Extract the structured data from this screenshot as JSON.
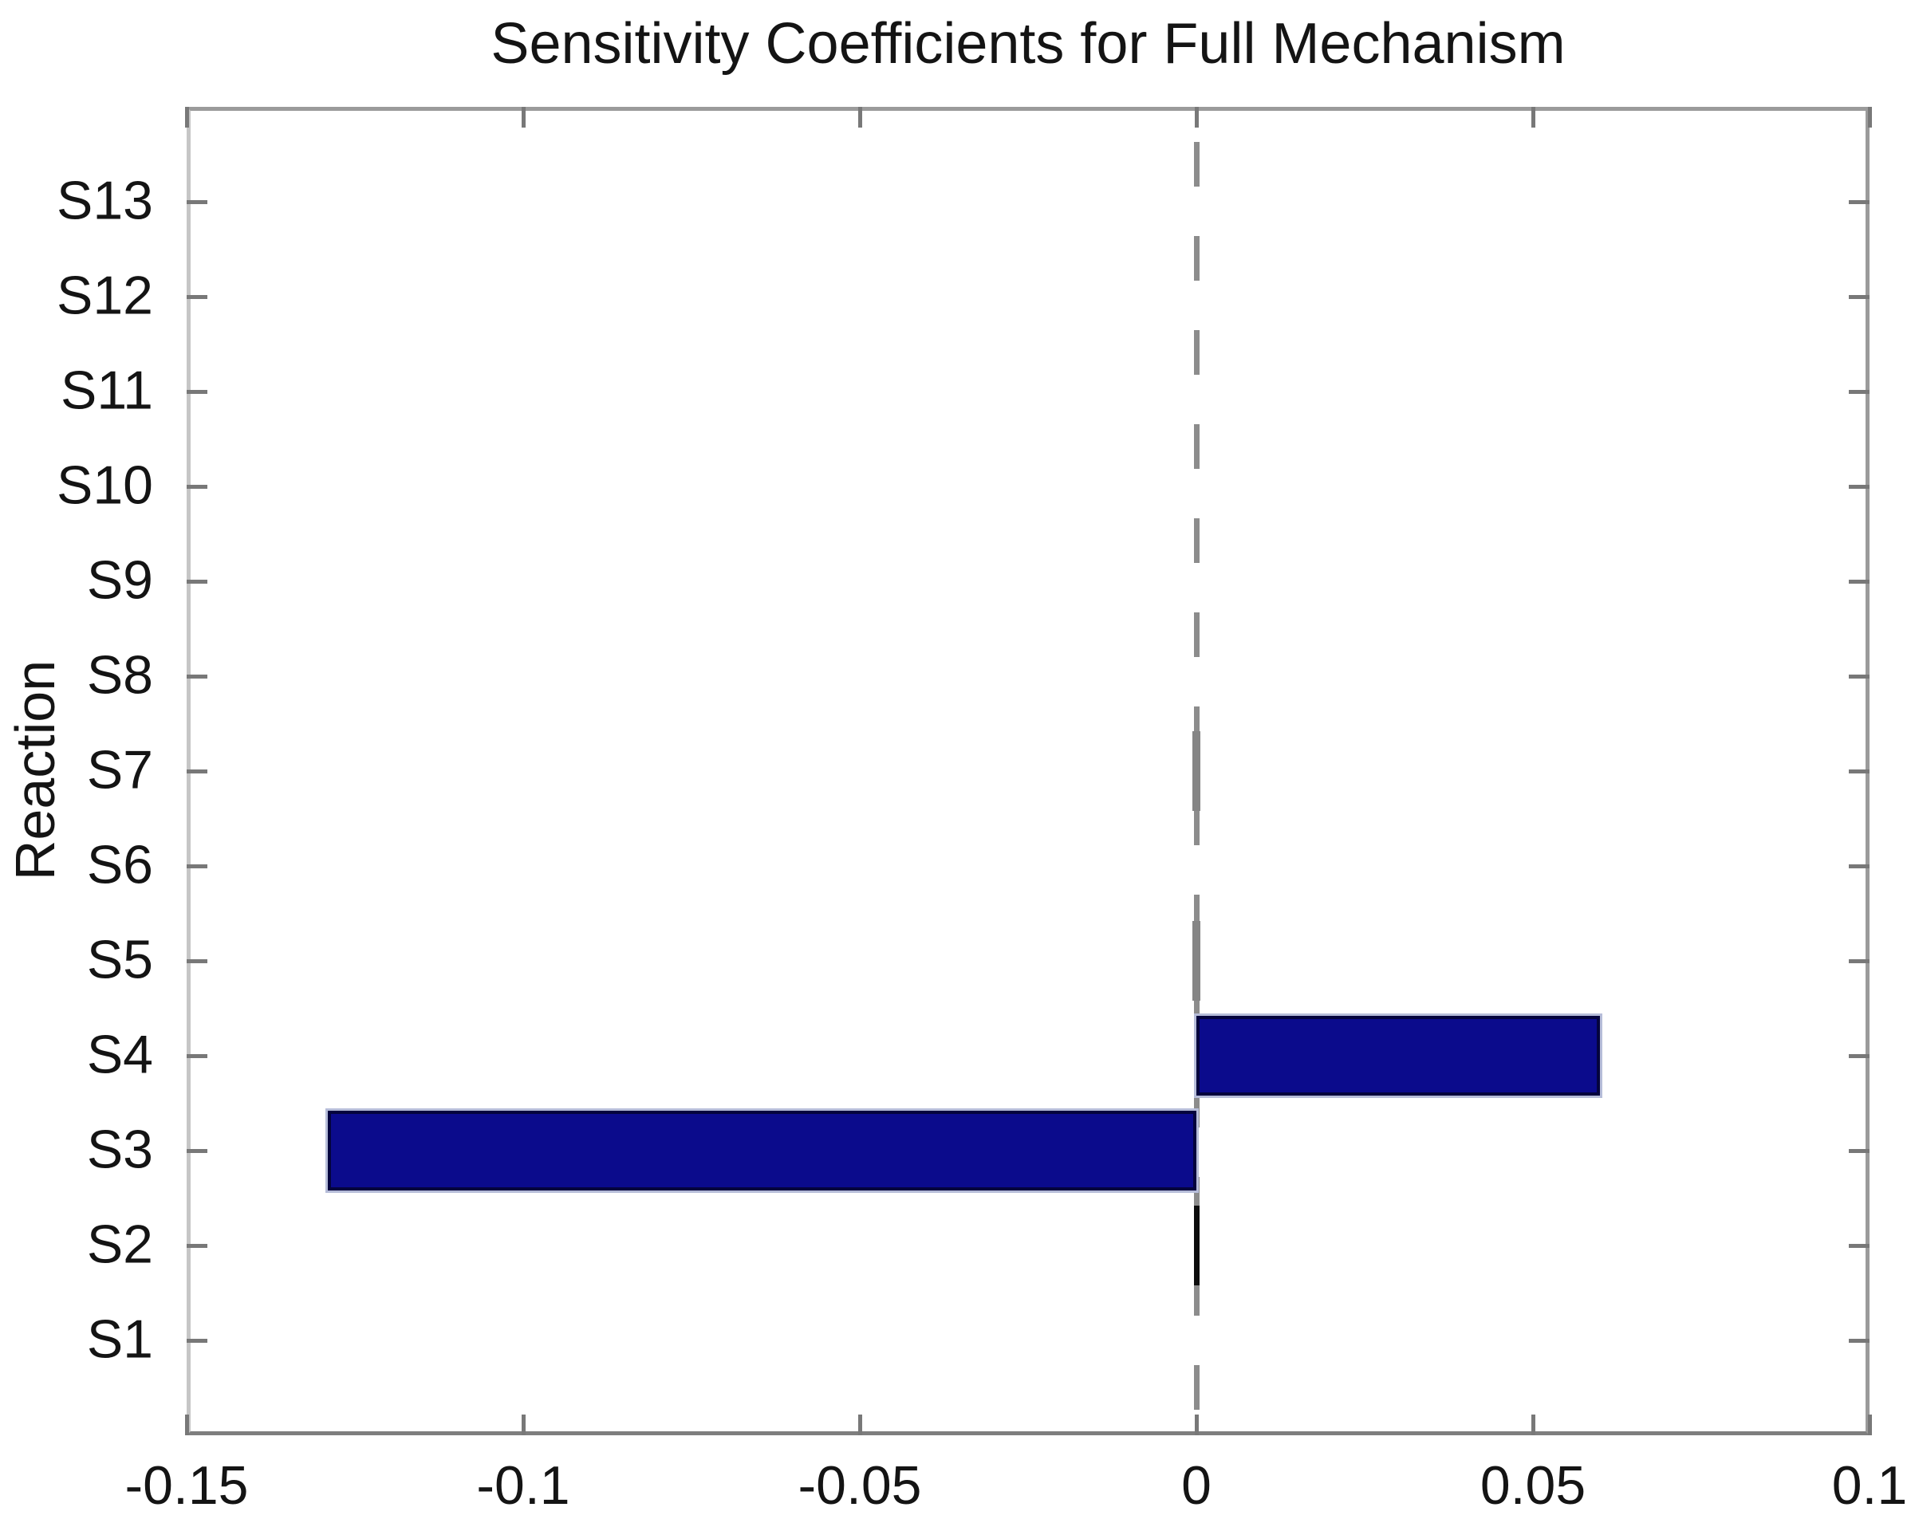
{
  "figure": {
    "background": "#ffffff"
  },
  "chart_data": {
    "type": "bar",
    "orientation": "horizontal",
    "title": "Sensitivity Coefficients for Full Mechanism",
    "xlabel": "",
    "ylabel": "Reaction",
    "categories": [
      "S1",
      "S2",
      "S3",
      "S4",
      "S5",
      "S6",
      "S7",
      "S8",
      "S9",
      "S10",
      "S11",
      "S12",
      "S13"
    ],
    "values": [
      0,
      0,
      -0.129,
      0.06,
      0,
      0,
      0,
      0,
      0,
      0,
      0,
      0,
      0
    ],
    "near_zero_marks": [
      {
        "category": "S2",
        "shade": "black"
      },
      {
        "category": "S5",
        "shade": "gray"
      },
      {
        "category": "S7",
        "shade": "gray"
      }
    ],
    "xlim": [
      -0.15,
      0.1
    ],
    "xticks": [
      -0.15,
      -0.1,
      -0.05,
      0,
      0.05,
      0.1
    ],
    "xtick_labels": [
      "-0.15",
      "-0.1",
      "-0.05",
      "0",
      "0.05",
      "0.1"
    ],
    "ylim": [
      0,
      14
    ],
    "zero_line_style": "dashed",
    "grid": false,
    "legend": null,
    "bar_width_fraction": 0.84
  },
  "colors": {
    "bar_fill": "#0b0b8c",
    "bar_edge": "#04043d",
    "bar_halo": "#b6bdd9",
    "axis_box": "#9b9b9b",
    "tick": "#787878",
    "zero_line": "#8c8c8c",
    "mark_black": "#0d0d0d",
    "mark_gray": "#858585",
    "text": "#141414",
    "background": "#ffffff"
  }
}
